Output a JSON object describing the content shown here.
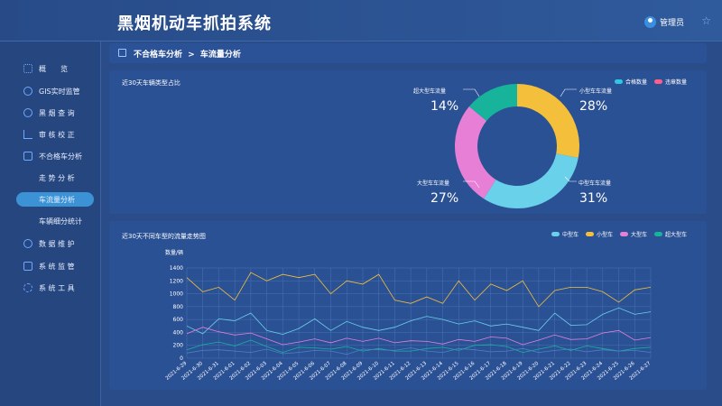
{
  "header": {
    "app_title": "黑烟机动车抓拍系统",
    "user_name": "管理员"
  },
  "sidebar": {
    "items": [
      {
        "label": "概　　览",
        "icon": "grid-icon"
      },
      {
        "label": "GIS实时监管",
        "icon": "location-icon"
      },
      {
        "label": "黑 烟 查 询",
        "icon": "search-icon"
      },
      {
        "label": "审 核 校 正",
        "icon": "chart-icon"
      },
      {
        "label": "不合格车分析",
        "icon": "edit-icon"
      },
      {
        "label": "走 势 分 析",
        "icon": ""
      },
      {
        "label": "车流量分析",
        "icon": ""
      },
      {
        "label": "车辆细分统计",
        "icon": ""
      },
      {
        "label": "数 据 维 护",
        "icon": "minus-circle-icon"
      },
      {
        "label": "系 统 监 管",
        "icon": "monitor-icon"
      },
      {
        "label": "系 统 工 具",
        "icon": "gear-icon"
      }
    ]
  },
  "breadcrumb": {
    "parent": "不合格车分析",
    "separator": ">",
    "current": "车流量分析"
  },
  "donut_panel": {
    "title": "近30天车辆类型占比",
    "legend": [
      {
        "label": "合格数量",
        "color": "#2ec7e6"
      },
      {
        "label": "违章数量",
        "color": "#ff5e8a"
      }
    ],
    "slices": [
      {
        "label": "小型车车流量",
        "pct": "28%",
        "value": 28,
        "color": "#f4bf3a"
      },
      {
        "label": "中型车车流量",
        "pct": "31%",
        "value": 31,
        "color": "#6ad1ea"
      },
      {
        "label": "大型车车流量",
        "pct": "27%",
        "value": 27,
        "color": "#e87fd6"
      },
      {
        "label": "超大型车流量",
        "pct": "14%",
        "value": 14,
        "color": "#17b39a"
      }
    ]
  },
  "line_panel": {
    "title": "近30天不同车型的流量走势图",
    "legend": [
      {
        "label": "中型车",
        "color": "#6ad1ea"
      },
      {
        "label": "小型车",
        "color": "#f4bf3a"
      },
      {
        "label": "大型车",
        "color": "#e87fd6"
      },
      {
        "label": "超大型车",
        "color": "#17b39a"
      }
    ]
  },
  "chart_data": {
    "type": "line",
    "title": "近30天不同车型的流量走势图",
    "ylabel": "数量/辆",
    "ylim": [
      0,
      1400
    ],
    "yticks": [
      0,
      200,
      400,
      600,
      800,
      1000,
      1200,
      1400
    ],
    "grid": true,
    "legend_position": "top-right",
    "x": [
      "2021-6-29",
      "2021-6-30",
      "2021-6-31",
      "2021-6-01",
      "2021-6-02",
      "2021-6-03",
      "2021-6-04",
      "2021-6-05",
      "2021-6-06",
      "2021-6-07",
      "2021-6-08",
      "2021-6-09",
      "2021-6-10",
      "2021-6-11",
      "2021-6-12",
      "2021-6-13",
      "2021-6-14",
      "2021-6-15",
      "2021-6-16",
      "2021-6-17",
      "2021-6-18",
      "2021-6-19",
      "2021-6-20",
      "2021-6-21",
      "2021-6-22",
      "2021-6-23",
      "2021-6-24",
      "2021-6-25",
      "2021-6-26",
      "2021-6-27"
    ],
    "series": [
      {
        "name": "小型车",
        "color": "#f4bf3a",
        "values": [
          1250,
          1030,
          1100,
          900,
          1330,
          1200,
          1300,
          1250,
          1300,
          1000,
          1200,
          1150,
          1300,
          900,
          850,
          950,
          850,
          1200,
          900,
          1150,
          1050,
          1200,
          800,
          1050,
          1100,
          1100,
          1030,
          870,
          1060,
          1100
        ]
      },
      {
        "name": "中型车",
        "color": "#6ad1ea",
        "values": [
          500,
          380,
          610,
          580,
          700,
          430,
          370,
          460,
          610,
          430,
          570,
          480,
          430,
          480,
          580,
          650,
          600,
          530,
          580,
          500,
          530,
          480,
          430,
          700,
          510,
          520,
          680,
          780,
          680,
          720
        ]
      },
      {
        "name": "大型车",
        "color": "#e87fd6",
        "values": [
          380,
          480,
          410,
          360,
          390,
          300,
          210,
          250,
          300,
          240,
          310,
          260,
          310,
          240,
          270,
          260,
          220,
          290,
          260,
          330,
          310,
          210,
          280,
          360,
          290,
          300,
          390,
          430,
          280,
          320
        ]
      },
      {
        "name": "超大型车",
        "color": "#17b39a",
        "values": [
          130,
          210,
          250,
          190,
          280,
          180,
          90,
          170,
          160,
          140,
          180,
          110,
          150,
          110,
          110,
          150,
          170,
          120,
          200,
          210,
          180,
          90,
          140,
          190,
          120,
          190,
          150,
          110,
          150,
          170
        ]
      },
      {
        "name": "",
        "color": "#4f7fc4",
        "values": [
          80,
          120,
          130,
          110,
          90,
          140,
          70,
          90,
          120,
          110,
          60,
          140,
          130,
          120,
          160,
          110,
          90,
          150,
          130,
          100,
          110,
          150,
          90,
          120,
          140,
          100,
          130,
          110,
          120,
          90
        ]
      }
    ]
  }
}
